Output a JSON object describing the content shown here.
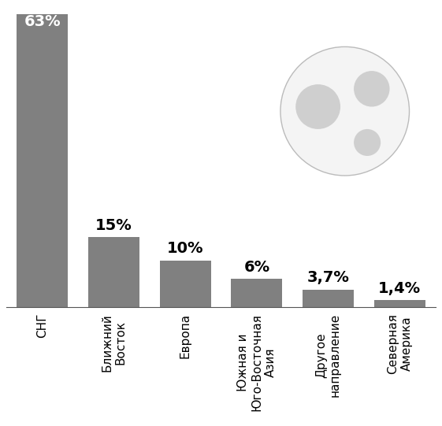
{
  "chart_data": {
    "type": "bar",
    "categories": [
      "СНГ",
      "Ближний Восток",
      "Европа",
      "Южная и Юго-Восточная Азия",
      "Другое направление",
      "Северная Америка"
    ],
    "values": [
      63,
      15,
      10,
      6,
      3.7,
      1.4
    ],
    "value_labels": [
      "63%",
      "15%",
      "10%",
      "6%",
      "3,7%",
      "1,4%"
    ],
    "color": "#808080",
    "data_labels": true,
    "tick_labels": "x"
  }
}
